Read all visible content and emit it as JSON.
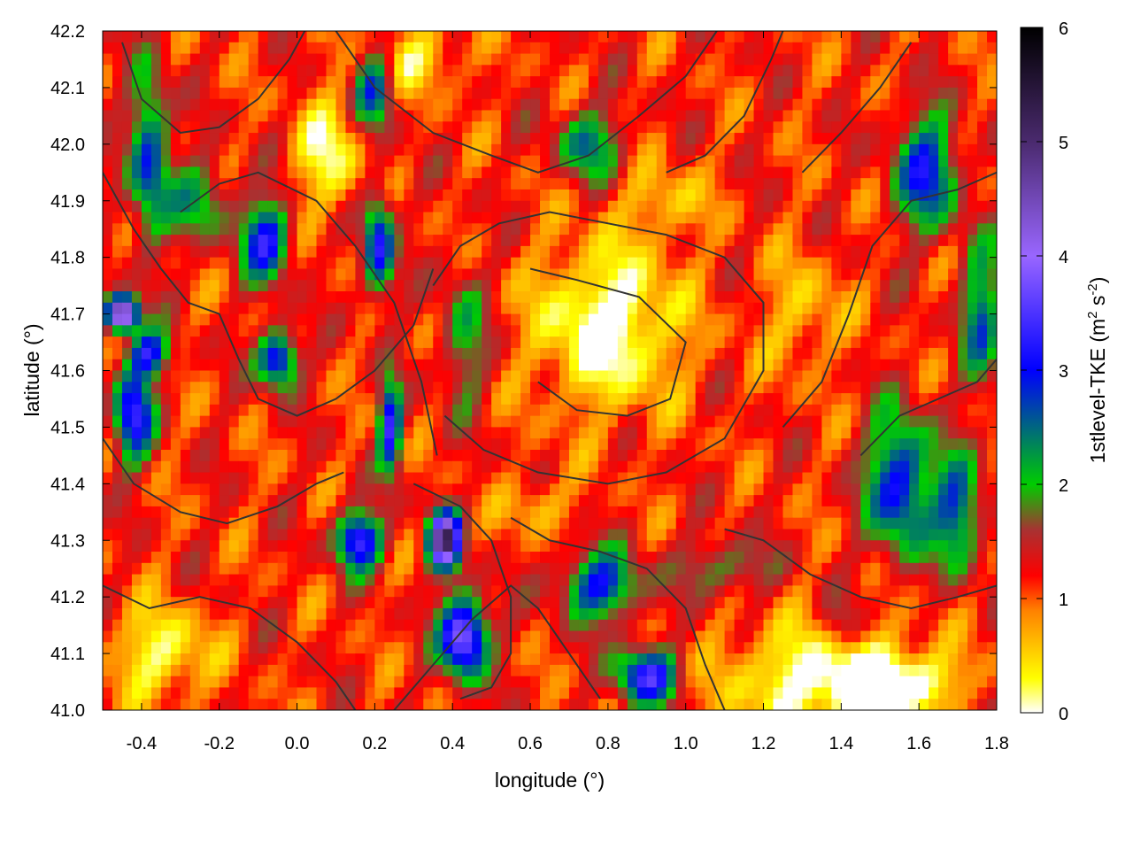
{
  "chart_data": {
    "type": "heatmap",
    "title": "",
    "xlabel": "longitude (°)",
    "ylabel": "latitude (°)",
    "xlim": [
      -0.5,
      1.8
    ],
    "ylim": [
      41.0,
      42.2
    ],
    "x_ticks": [
      "-0.4",
      "-0.2",
      "0.0",
      "0.2",
      "0.4",
      "0.6",
      "0.8",
      "1.0",
      "1.2",
      "1.4",
      "1.6",
      "1.8"
    ],
    "x_tick_values": [
      -0.4,
      -0.2,
      0.0,
      0.2,
      0.4,
      0.6,
      0.8,
      1.0,
      1.2,
      1.4,
      1.6,
      1.8
    ],
    "y_ticks": [
      "41.0",
      "41.1",
      "41.2",
      "41.3",
      "41.4",
      "41.5",
      "41.6",
      "41.7",
      "41.8",
      "41.9",
      "42.0",
      "42.1",
      "42.2"
    ],
    "y_tick_values": [
      41.0,
      41.1,
      41.2,
      41.3,
      41.4,
      41.5,
      41.6,
      41.7,
      41.8,
      41.9,
      42.0,
      42.1,
      42.2
    ],
    "colorbar": {
      "label_base": "1stlevel-TKE (m",
      "label_sup1": "2",
      "label_mid": " s",
      "label_sup2": "-2",
      "label_end": ")",
      "range": [
        0,
        6
      ],
      "ticks": [
        "0",
        "1",
        "2",
        "3",
        "4",
        "5",
        "6"
      ],
      "tick_values": [
        0,
        1,
        2,
        3,
        4,
        5,
        6
      ],
      "palette": [
        "#ffffff",
        "#ffff00",
        "#ff8000",
        "#ff0000",
        "#a83232",
        "#00cc00",
        "#0000ff",
        "#9966ff",
        "#4a2a6e",
        "#000000"
      ],
      "palette_stops": [
        0,
        0.3,
        0.9,
        1.2,
        1.6,
        2.0,
        3.0,
        4.0,
        5.0,
        6.0
      ]
    },
    "contours": {
      "color": "#333333",
      "description_visible": false
    },
    "grid": false,
    "legend": "none"
  }
}
